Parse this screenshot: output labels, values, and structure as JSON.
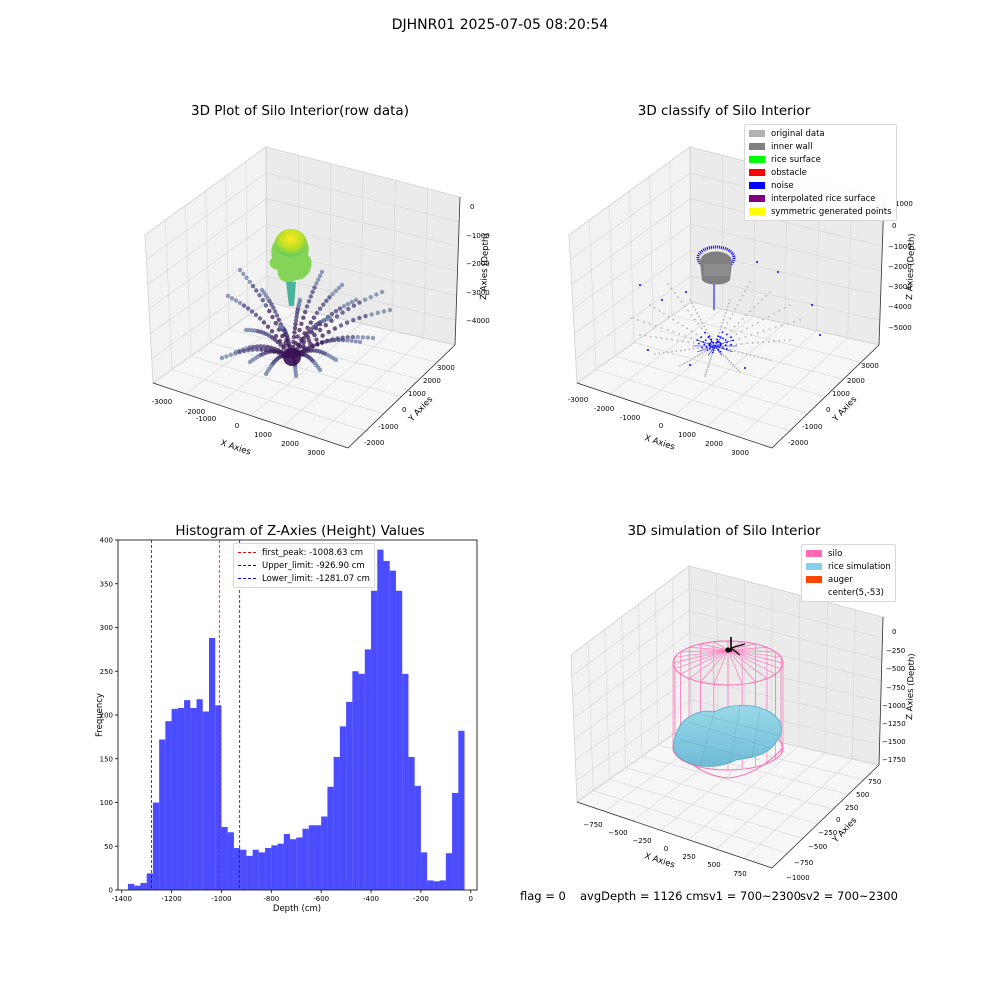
{
  "suptitle": "DJHNR01 2025-07-05 08:20:54",
  "panels": {
    "raw": {
      "title": "3D Plot of Silo Interior(row data)",
      "xlabel": "X Axies",
      "ylabel": "Y Axies",
      "zlabel": "Z Axies (Depth)",
      "xticks": [
        "-3000",
        "-2000",
        "-1000",
        "0",
        "1000",
        "2000",
        "3000"
      ],
      "yticks": [
        "-2000",
        "-1000",
        "0",
        "1000",
        "2000",
        "3000"
      ],
      "zticks": [
        "0",
        "−1000",
        "−2000",
        "−3000",
        "−4000"
      ]
    },
    "classify": {
      "title": "3D classify of Silo Interior",
      "xlabel": "X Axies",
      "ylabel": "Y Axies",
      "zlabel": "Z Axies (Depth)",
      "xticks": [
        "-3000",
        "-2000",
        "-1000",
        "0",
        "1000",
        "2000",
        "3000"
      ],
      "yticks": [
        "-2000",
        "-1000",
        "0",
        "1000",
        "2000",
        "3000"
      ],
      "zticks": [
        "1000",
        "0",
        "−1000",
        "−2000",
        "−3000",
        "−4000",
        "−5000"
      ],
      "legend": [
        {
          "label": "original data",
          "color": "#b3b3b3"
        },
        {
          "label": "inner wall",
          "color": "#808080"
        },
        {
          "label": "rice surface",
          "color": "#00ff00"
        },
        {
          "label": "obstacle",
          "color": "#ff0000"
        },
        {
          "label": "noise",
          "color": "#0000ff"
        },
        {
          "label": "interpolated rice surface",
          "color": "#800080"
        },
        {
          "label": "symmetric generated points",
          "color": "#ffff00"
        }
      ]
    },
    "simulation": {
      "title": "3D simulation of Silo Interior",
      "xlabel": "X Axies",
      "ylabel": "Y Axies",
      "zlabel": "Z Axies (Depth)",
      "xticks": [
        "−750",
        "−500",
        "−250",
        "0",
        "250",
        "500",
        "750"
      ],
      "yticks": [
        "−1000",
        "−750",
        "−500",
        "−250",
        "0",
        "250",
        "500",
        "750"
      ],
      "zticks": [
        "0",
        "−250",
        "−500",
        "−750",
        "−1000",
        "−1250",
        "−1500",
        "−1750"
      ],
      "legend": [
        {
          "label": "silo",
          "color": "#ff69b4"
        },
        {
          "label": "rice simulation",
          "color": "#87ceeb"
        },
        {
          "label": "auger",
          "color": "#ff4500"
        },
        {
          "label": "center(5,-53)",
          "color": ""
        }
      ]
    }
  },
  "chart_data": {
    "type": "bar",
    "title": "Histogram of Z-Axies (Height) Values",
    "xlabel": "Depth (cm)",
    "ylabel": "Frequency",
    "xlim": [
      -1415,
      25
    ],
    "ylim": [
      0,
      400
    ],
    "xticks": [
      -1400,
      -1200,
      -1000,
      -800,
      -600,
      -400,
      -200,
      0
    ],
    "yticks": [
      0,
      50,
      100,
      150,
      200,
      250,
      300,
      350,
      400
    ],
    "bin_start": -1400,
    "bin_width": 25,
    "values": [
      0,
      7,
      5,
      8,
      19,
      100,
      172,
      193,
      207,
      208,
      217,
      208,
      218,
      204,
      288,
      211,
      72,
      66,
      48,
      46,
      39,
      46,
      43,
      48,
      51,
      53,
      64,
      58,
      60,
      70,
      74,
      74,
      84,
      118,
      152,
      187,
      215,
      250,
      247,
      275,
      342,
      389,
      376,
      365,
      342,
      247,
      152,
      119,
      43,
      11,
      10,
      11,
      42,
      111,
      182
    ],
    "bar_color": "#0000ff",
    "lines": [
      {
        "label": "first_peak: -1008.63 cm",
        "x": -1008.63,
        "color": "#ff0000"
      },
      {
        "label": "Upper_limit: -926.90 cm",
        "x": -926.9,
        "color": "#0000ff"
      },
      {
        "label": "Lower_limit: -1281.07 cm",
        "x": -1281.07,
        "color": "#0000ff"
      }
    ]
  },
  "footer": {
    "flag": "flag = 0",
    "avg": "avgDepth = 1126 cm",
    "sv1": "sv1 = 700~2300",
    "sv2": "sv2 = 700~2300"
  }
}
